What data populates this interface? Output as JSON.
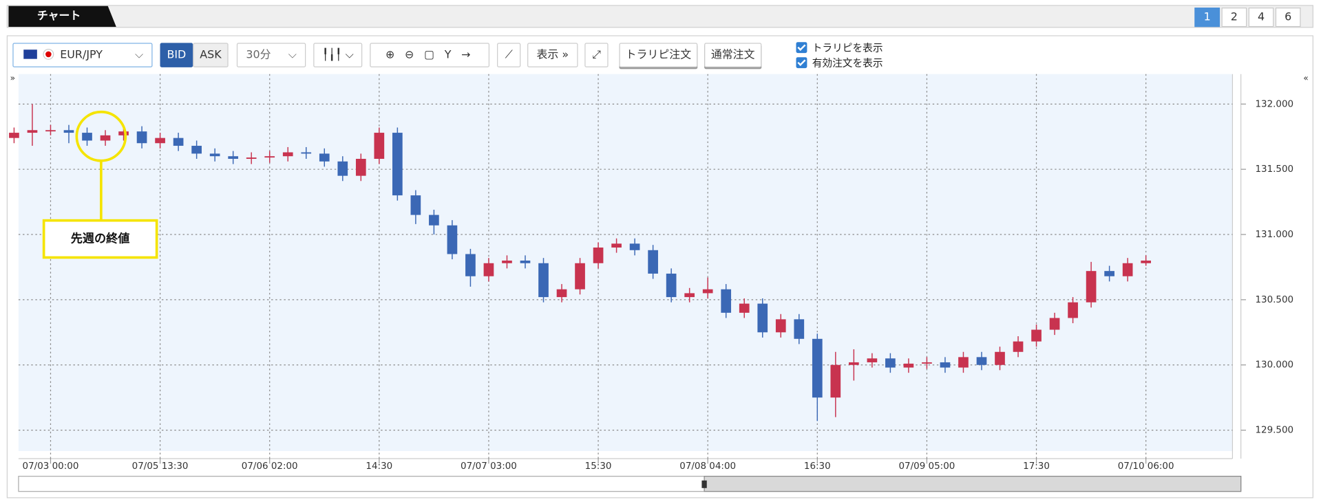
{
  "header": {
    "tab": "チャート",
    "pages": [
      "1",
      "2",
      "4",
      "6"
    ]
  },
  "toolbar": {
    "symbol": "EUR/JPY",
    "bid": "BID",
    "ask": "ASK",
    "interval": "30分",
    "display": "表示",
    "trarepi_order": "トラリピ注文",
    "normal_order": "通常注文",
    "show_trarepi": "トラリピを表示",
    "show_orders": "有効注文を表示"
  },
  "chart_data": {
    "type": "candlestick",
    "annotation": "先週の終値",
    "up_color": "#c8334f",
    "down_color": "#3b68b5",
    "grid": true,
    "categories": [
      null,
      null,
      "07/03 00:00",
      null,
      null,
      null,
      null,
      null,
      "07/05 13:30",
      null,
      null,
      null,
      null,
      null,
      "07/06 02:00",
      null,
      null,
      null,
      null,
      null,
      "14:30",
      null,
      null,
      null,
      null,
      null,
      "07/07 03:00",
      null,
      null,
      null,
      null,
      null,
      "15:30",
      null,
      null,
      null,
      null,
      null,
      "07/08 04:00",
      null,
      null,
      null,
      null,
      null,
      "16:30",
      null,
      null,
      null,
      null,
      null,
      "07/09 05:00",
      null,
      null,
      null,
      null,
      null,
      "17:30",
      null,
      null,
      null,
      null,
      null,
      "07/10 06:00"
    ],
    "open": [
      131.74,
      131.78,
      131.8,
      131.8,
      131.78,
      131.72,
      131.76,
      131.79,
      131.7,
      131.74,
      131.68,
      131.62,
      131.6,
      131.58,
      131.59,
      131.6,
      131.63,
      131.62,
      131.56,
      131.45,
      131.58,
      131.78,
      131.3,
      131.15,
      131.07,
      130.85,
      130.68,
      130.78,
      130.8,
      130.78,
      130.52,
      130.58,
      130.78,
      130.9,
      130.93,
      130.88,
      130.7,
      130.52,
      130.55,
      130.58,
      130.4,
      130.47,
      130.25,
      130.35,
      130.2,
      129.75,
      130.0,
      130.02,
      130.05,
      129.98,
      130.01,
      130.02,
      129.98,
      130.06,
      130.0,
      130.1,
      130.18,
      130.27,
      130.36,
      130.48,
      130.72,
      130.68,
      130.78
    ],
    "high": [
      131.82,
      132.0,
      131.84,
      131.84,
      131.82,
      131.8,
      131.83,
      131.83,
      131.78,
      131.78,
      131.72,
      131.66,
      131.64,
      131.63,
      131.64,
      131.67,
      131.67,
      131.66,
      131.6,
      131.62,
      131.82,
      131.82,
      131.34,
      131.19,
      131.11,
      130.89,
      130.82,
      130.84,
      130.84,
      130.82,
      130.62,
      130.82,
      130.94,
      130.97,
      130.97,
      130.92,
      130.74,
      130.59,
      130.67,
      130.62,
      130.51,
      130.51,
      130.39,
      130.39,
      130.24,
      130.1,
      130.12,
      130.09,
      130.09,
      130.05,
      130.06,
      130.06,
      130.1,
      130.1,
      130.14,
      130.22,
      130.31,
      130.4,
      130.52,
      130.79,
      130.76,
      130.82,
      130.84
    ],
    "low": [
      131.7,
      131.68,
      131.76,
      131.7,
      131.68,
      131.68,
      131.72,
      131.66,
      131.66,
      131.64,
      131.58,
      131.56,
      131.54,
      131.54,
      131.55,
      131.56,
      131.58,
      131.52,
      131.41,
      131.41,
      131.54,
      131.26,
      131.08,
      131.0,
      130.81,
      130.6,
      130.64,
      130.74,
      130.74,
      130.48,
      130.48,
      130.54,
      130.74,
      130.86,
      130.84,
      130.66,
      130.48,
      130.48,
      130.51,
      130.36,
      130.36,
      130.21,
      130.21,
      130.16,
      129.57,
      129.6,
      129.88,
      129.98,
      129.94,
      129.94,
      129.97,
      129.94,
      129.94,
      129.96,
      129.96,
      130.06,
      130.14,
      130.23,
      130.32,
      130.44,
      130.64,
      130.64,
      130.76
    ],
    "close": [
      131.78,
      131.8,
      131.8,
      131.78,
      131.72,
      131.76,
      131.79,
      131.7,
      131.74,
      131.68,
      131.62,
      131.6,
      131.58,
      131.59,
      131.6,
      131.63,
      131.62,
      131.56,
      131.45,
      131.58,
      131.78,
      131.3,
      131.15,
      131.07,
      130.85,
      130.68,
      130.78,
      130.8,
      130.78,
      130.52,
      130.58,
      130.78,
      130.9,
      130.93,
      130.88,
      130.7,
      130.52,
      130.55,
      130.58,
      130.4,
      130.47,
      130.25,
      130.35,
      130.2,
      129.75,
      130.0,
      130.02,
      130.05,
      129.98,
      130.01,
      130.02,
      129.98,
      130.06,
      130.0,
      130.1,
      130.18,
      130.27,
      130.36,
      130.48,
      130.72,
      130.68,
      130.78,
      130.8
    ],
    "ylim": [
      129.34,
      132.23
    ],
    "yticks": [
      {
        "value": 129.5,
        "label": "129.500"
      },
      {
        "value": 130,
        "label": "130.000"
      },
      {
        "value": 130.5,
        "label": "130.500"
      },
      {
        "value": 131,
        "label": "131.000"
      },
      {
        "value": 131.5,
        "label": "131.500"
      },
      {
        "value": 132,
        "label": "132.000"
      }
    ]
  }
}
